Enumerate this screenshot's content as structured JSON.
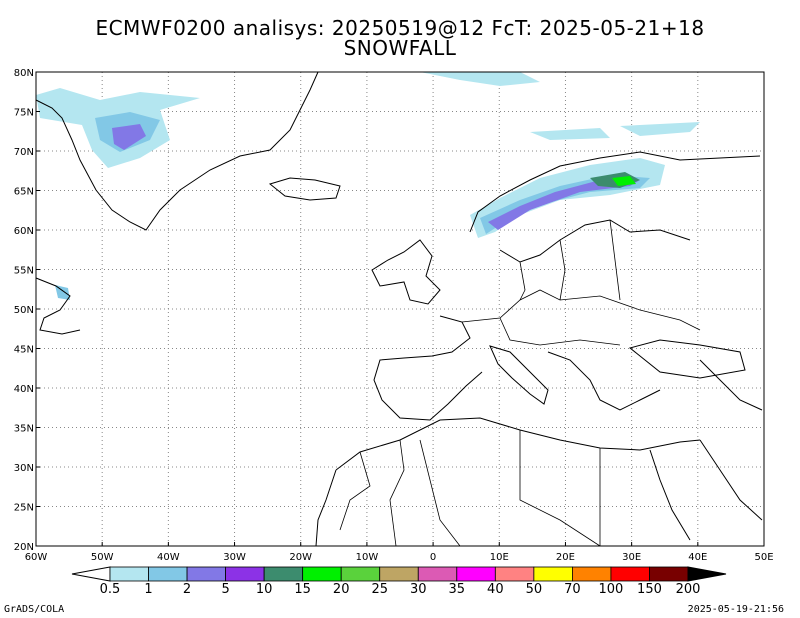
{
  "title": {
    "line1": "ECMWF0200 analisys: 20250519@12 FcT: 2025-05-21+18",
    "line2": "SNOWFALL"
  },
  "map": {
    "lon_range": [
      -60,
      50
    ],
    "lat_range": [
      20,
      80
    ],
    "grid": true,
    "lon_ticks": [
      "60W",
      "50W",
      "40W",
      "30W",
      "20W",
      "10W",
      "0",
      "10E",
      "20E",
      "30E",
      "40E",
      "50E"
    ],
    "lat_ticks": [
      "80N",
      "75N",
      "70N",
      "65N",
      "60N",
      "55N",
      "50N",
      "45N",
      "40N",
      "35N",
      "30N",
      "25N",
      "20N"
    ]
  },
  "legend": {
    "labels": [
      "0.5",
      "1",
      "2",
      "5",
      "10",
      "15",
      "20",
      "25",
      "30",
      "35",
      "40",
      "50",
      "70",
      "100",
      "150",
      "200"
    ],
    "colors": [
      "#b4e6f0",
      "#82c8e6",
      "#8278e6",
      "#8c32e6",
      "#3c8c6e",
      "#00f000",
      "#5ad23c",
      "#bea564",
      "#dc5ab4",
      "#ff00ff",
      "#ff8282",
      "#ffff00",
      "#ff8200",
      "#ff0000",
      "#780000"
    ]
  },
  "footer": {
    "credit": "GrADS/COLA",
    "timestamp": "2025-05-19-21:56"
  }
}
